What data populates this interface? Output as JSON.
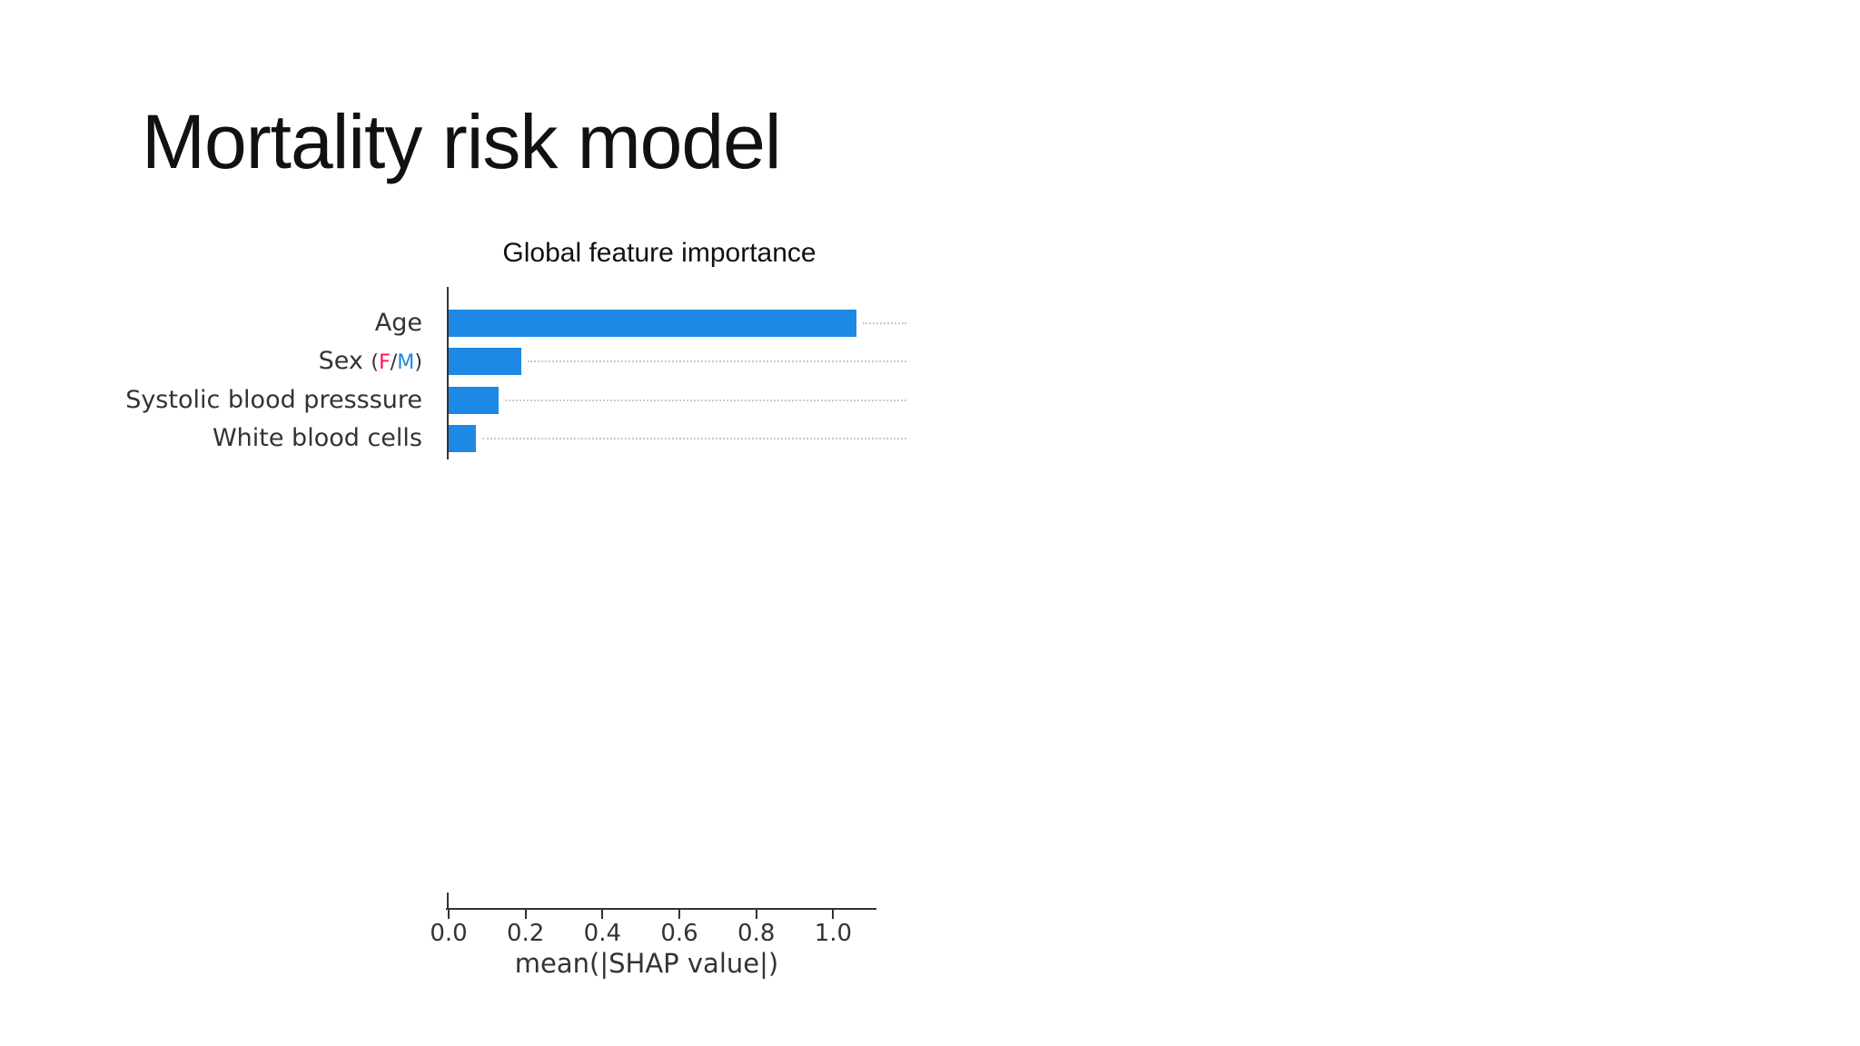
{
  "slide": {
    "title": "Mortality risk model",
    "background_color": "#ffffff"
  },
  "chart_data": {
    "type": "bar",
    "orientation": "horizontal",
    "title": "Global feature importance",
    "xlabel": "mean(|SHAP value|)",
    "categories": [
      "Age",
      "Sex (F/M)",
      "Systolic blood presssure",
      "White blood cells"
    ],
    "values": [
      1.06,
      0.19,
      0.13,
      0.07
    ],
    "xticks": [
      0,
      0.2,
      0.4,
      0.6,
      0.8,
      1.0
    ],
    "xtick_labels": [
      "0.0",
      "0.2",
      "0.4",
      "0.6",
      "0.8",
      "1.0"
    ],
    "xlim": [
      0,
      1.11
    ],
    "grid": "dotted leader line from each bar end to right edge",
    "legend_position": "none",
    "bar_color": "#1E88E5",
    "text_color": "#333333",
    "leader_line_color": "#c9c9c9",
    "sex_label": {
      "prefix": "Sex ",
      "open_paren": "(",
      "female": "F",
      "slash": "/",
      "male": "M",
      "close_paren": ")",
      "female_color": "#ff0d57",
      "male_color": "#1E88E5"
    }
  }
}
